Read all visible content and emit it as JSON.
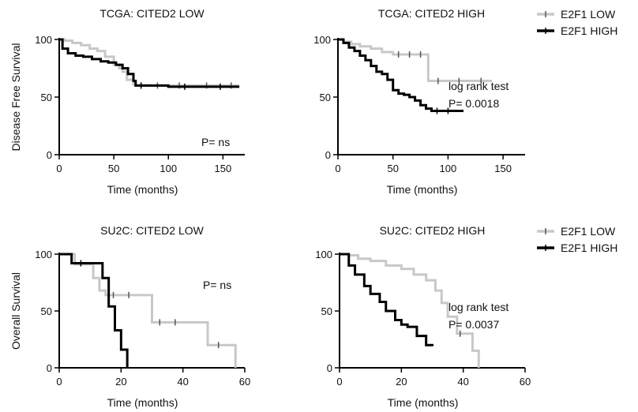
{
  "chart_data": [
    {
      "type": "line",
      "title": "TCGA: CITED2 LOW",
      "xlabel": "Time (months)",
      "ylabel": "Disease Free Survival",
      "xlim": [
        0,
        170
      ],
      "ylim": [
        0,
        100
      ],
      "xticks": [
        0,
        50,
        100,
        150
      ],
      "yticks": [
        0,
        50,
        100
      ],
      "annotation": [
        "P= ns"
      ],
      "series": [
        {
          "name": "E2F1 LOW",
          "color": "#c8c8c8",
          "x": [
            0,
            5,
            12,
            20,
            28,
            35,
            42,
            50,
            55,
            58,
            62,
            68,
            70,
            80,
            100,
            120,
            150,
            165
          ],
          "y": [
            100,
            99,
            97,
            95,
            92,
            90,
            85,
            78,
            75,
            72,
            65,
            61,
            60,
            60,
            60,
            60,
            60,
            60
          ]
        },
        {
          "name": "E2F1 HIGH",
          "color": "#000000",
          "x": [
            0,
            3,
            8,
            15,
            22,
            30,
            38,
            45,
            52,
            58,
            63,
            68,
            70,
            80,
            100,
            130,
            165
          ],
          "y": [
            100,
            92,
            88,
            86,
            85,
            83,
            81,
            80,
            78,
            75,
            70,
            64,
            60,
            60,
            59,
            59,
            59
          ]
        }
      ]
    },
    {
      "type": "line",
      "title": "TCGA: CITED2 HIGH",
      "xlabel": "Time (months)",
      "ylabel": "",
      "xlim": [
        0,
        170
      ],
      "ylim": [
        0,
        100
      ],
      "xticks": [
        0,
        50,
        100,
        150
      ],
      "yticks": [
        0,
        50,
        100
      ],
      "annotation": [
        "log rank test",
        "P= 0.0018"
      ],
      "series": [
        {
          "name": "E2F1 LOW",
          "color": "#c8c8c8",
          "x": [
            0,
            5,
            12,
            20,
            30,
            40,
            50,
            60,
            70,
            80,
            82,
            100,
            120,
            140
          ],
          "y": [
            100,
            98,
            96,
            94,
            92,
            89,
            87,
            87,
            87,
            87,
            64,
            64,
            64,
            64
          ]
        },
        {
          "name": "E2F1 HIGH",
          "color": "#000000",
          "x": [
            0,
            5,
            10,
            15,
            20,
            25,
            30,
            35,
            40,
            45,
            50,
            55,
            60,
            65,
            70,
            75,
            80,
            85,
            95,
            105,
            113
          ],
          "y": [
            100,
            97,
            93,
            90,
            86,
            82,
            77,
            72,
            70,
            65,
            56,
            53,
            52,
            50,
            47,
            43,
            40,
            38,
            38,
            38,
            39
          ]
        }
      ]
    },
    {
      "type": "line",
      "title": "SU2C: CITED2 LOW",
      "xlabel": "Time (months)",
      "ylabel": "Overall Survival",
      "xlim": [
        0,
        60
      ],
      "ylim": [
        0,
        100
      ],
      "xticks": [
        0,
        20,
        40,
        60
      ],
      "yticks": [
        0,
        50,
        100
      ],
      "annotation": [
        "P= ns"
      ],
      "series": [
        {
          "name": "E2F1 LOW",
          "color": "#c8c8c8",
          "x": [
            0,
            5,
            11,
            13,
            15,
            20,
            25,
            30,
            35,
            40,
            48,
            55,
            57
          ],
          "y": [
            100,
            91,
            79,
            68,
            64,
            64,
            64,
            40,
            40,
            40,
            20,
            20,
            0
          ]
        },
        {
          "name": "E2F1 HIGH",
          "color": "#000000",
          "x": [
            0,
            4,
            10,
            14,
            16,
            18,
            20,
            22
          ],
          "y": [
            100,
            92,
            92,
            79,
            54,
            33,
            16,
            0
          ]
        }
      ]
    },
    {
      "type": "line",
      "title": "SU2C: CITED2 HIGH",
      "xlabel": "Time (months)",
      "ylabel": "",
      "xlim": [
        0,
        60
      ],
      "ylim": [
        0,
        100
      ],
      "xticks": [
        0,
        20,
        40,
        60
      ],
      "yticks": [
        0,
        50,
        100
      ],
      "annotation": [
        "log rank test",
        "P= 0.0037"
      ],
      "series": [
        {
          "name": "E2F1 LOW",
          "color": "#c8c8c8",
          "x": [
            0,
            3,
            6,
            10,
            15,
            20,
            24,
            28,
            31,
            33,
            35,
            38,
            40,
            43,
            45
          ],
          "y": [
            100,
            99,
            96,
            94,
            90,
            87,
            82,
            77,
            68,
            57,
            45,
            30,
            30,
            15,
            0
          ]
        },
        {
          "name": "E2F1 HIGH",
          "color": "#000000",
          "x": [
            0,
            3,
            5,
            8,
            10,
            13,
            15,
            18,
            20,
            22,
            25,
            28,
            30
          ],
          "y": [
            100,
            90,
            82,
            72,
            65,
            58,
            50,
            42,
            38,
            36,
            28,
            20,
            19
          ]
        }
      ]
    }
  ],
  "legends": [
    {
      "items": [
        {
          "label": "E2F1 LOW",
          "color": "#c8c8c8"
        },
        {
          "label": "E2F1 HIGH",
          "color": "#000000"
        }
      ]
    },
    {
      "items": [
        {
          "label": "E2F1 LOW",
          "color": "#c8c8c8"
        },
        {
          "label": "E2F1 HIGH",
          "color": "#000000"
        }
      ]
    }
  ]
}
